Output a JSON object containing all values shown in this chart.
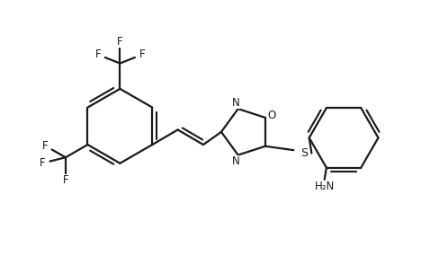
{
  "bg_color": "#ffffff",
  "line_color": "#1a1a1a",
  "line_width": 1.6,
  "font_size": 8.5,
  "figsize": [
    4.98,
    2.85
  ],
  "dpi": 100,
  "xlim": [
    0,
    10
  ],
  "ylim": [
    0,
    6.5
  ]
}
